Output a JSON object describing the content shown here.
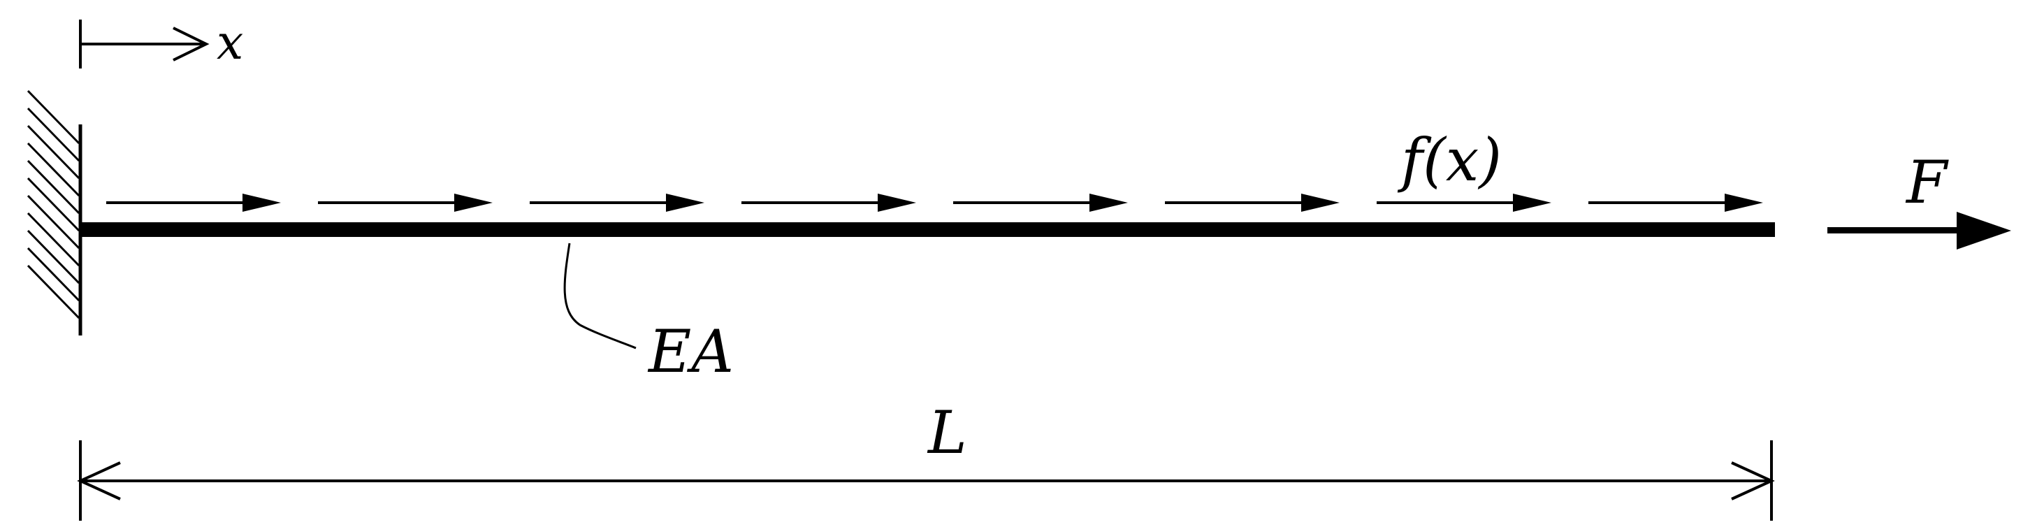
{
  "labels": {
    "x_axis": "x",
    "distributed_load": "f(x)",
    "point_force": "F",
    "stiffness": "EA",
    "length": "L"
  },
  "colors": {
    "ink": "#000000",
    "background": "#ffffff"
  },
  "distributed_load_arrow_count": 8
}
